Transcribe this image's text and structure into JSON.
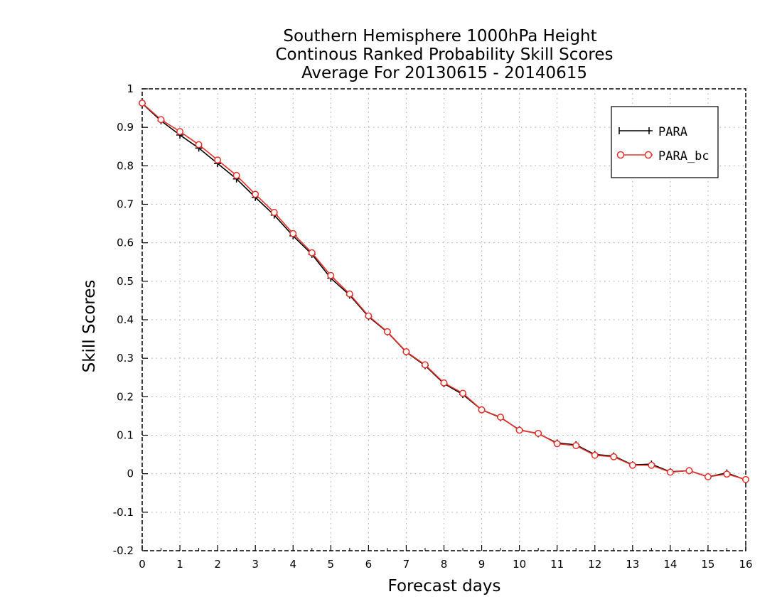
{
  "chart_data": {
    "type": "line",
    "title": [
      "Southern Hemisphere 1000hPa Height",
      "Continous Ranked Probability Skill Scores",
      "Average For 20130615 - 20140615"
    ],
    "xlabel": "Forecast days",
    "ylabel": "Skill Scores",
    "xlim": [
      0,
      16
    ],
    "ylim": [
      -0.2,
      1
    ],
    "xticks": [
      "0",
      "1",
      "2",
      "3",
      "4",
      "5",
      "6",
      "7",
      "8",
      "9",
      "10",
      "11",
      "12",
      "13",
      "14",
      "15",
      "16"
    ],
    "yticks": [
      "-0.2",
      "-0.1",
      "0",
      "0.1",
      "0.2",
      "0.3",
      "0.4",
      "0.5",
      "0.6",
      "0.7",
      "0.8",
      "0.9",
      "1"
    ],
    "grid": true,
    "legend_position": "top-right",
    "x": [
      0,
      0.5,
      1,
      1.5,
      2,
      2.5,
      3,
      3.5,
      4,
      4.5,
      5,
      5.5,
      6,
      6.5,
      7,
      7.5,
      8,
      8.5,
      9,
      9.5,
      10,
      10.5,
      11,
      11.5,
      12,
      12.5,
      13,
      13.5,
      14,
      14.5,
      15,
      15.5,
      16
    ],
    "series": [
      {
        "name": "PARA",
        "color": "#000000",
        "marker": "plus",
        "values": [
          0.962,
          0.917,
          0.88,
          0.846,
          0.806,
          0.766,
          0.718,
          0.672,
          0.618,
          0.57,
          0.508,
          0.464,
          0.408,
          0.368,
          0.316,
          0.281,
          0.234,
          0.206,
          0.166,
          0.146,
          0.114,
          0.104,
          0.08,
          0.075,
          0.05,
          0.046,
          0.023,
          0.025,
          0.005,
          0.008,
          -0.008,
          0.002,
          -0.016
        ]
      },
      {
        "name": "PARA_bc",
        "color": "#e8302a",
        "marker": "circle",
        "values": [
          0.963,
          0.92,
          0.889,
          0.855,
          0.815,
          0.775,
          0.726,
          0.679,
          0.624,
          0.574,
          0.515,
          0.467,
          0.41,
          0.369,
          0.317,
          0.283,
          0.236,
          0.209,
          0.166,
          0.147,
          0.113,
          0.105,
          0.078,
          0.073,
          0.048,
          0.044,
          0.022,
          0.022,
          0.004,
          0.008,
          -0.008,
          -0.001,
          -0.015
        ]
      }
    ]
  }
}
